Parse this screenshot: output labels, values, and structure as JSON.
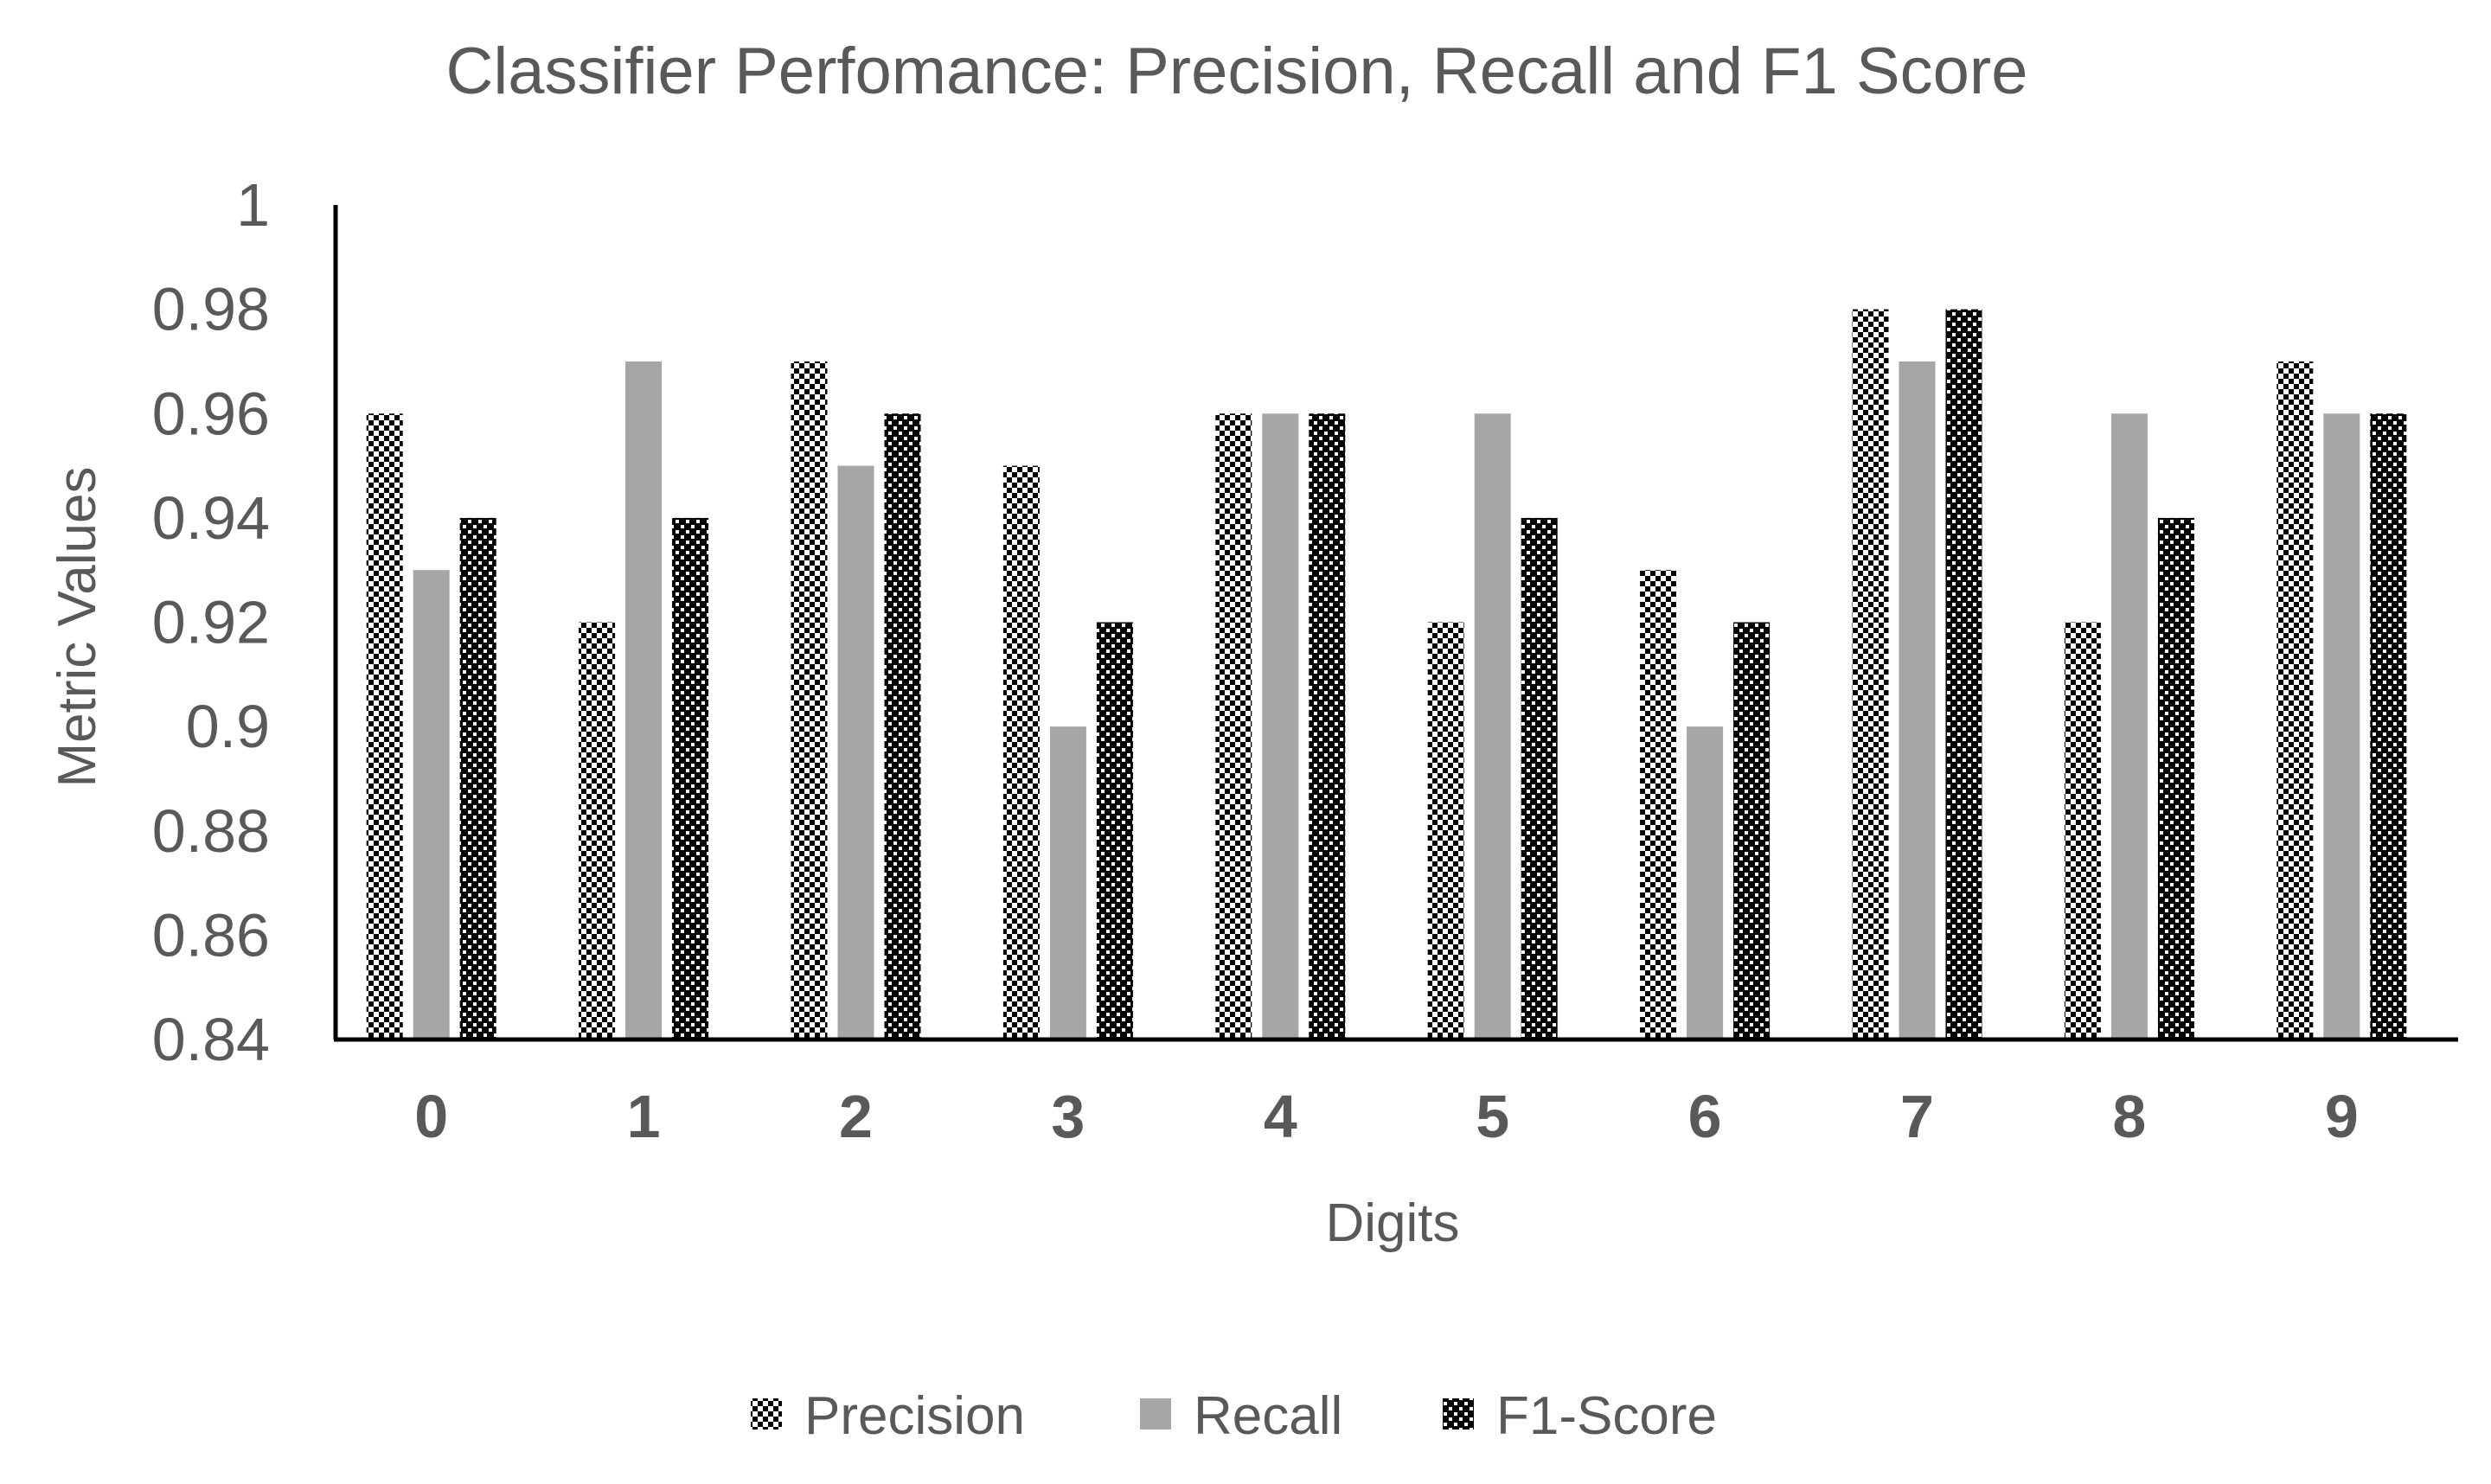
{
  "chart_data": {
    "type": "bar",
    "title": "Classifier Perfomance: Precision, Recall and F1 Score",
    "xlabel": "Digits",
    "ylabel": "Metric Values",
    "categories": [
      "0",
      "1",
      "2",
      "3",
      "4",
      "5",
      "6",
      "7",
      "8",
      "9"
    ],
    "ylim": [
      0.84,
      1
    ],
    "yticks": [
      "0.84",
      "0.86",
      "0.88",
      "0.9",
      "0.92",
      "0.94",
      "0.96",
      "0.98",
      "1"
    ],
    "grid": false,
    "legend_position": "bottom",
    "series": [
      {
        "name": "Precision",
        "pattern": "checker-light",
        "values": [
          0.96,
          0.92,
          0.97,
          0.95,
          0.96,
          0.92,
          0.93,
          0.98,
          0.92,
          0.97
        ]
      },
      {
        "name": "Recall",
        "pattern": "solid-gray",
        "values": [
          0.93,
          0.97,
          0.95,
          0.9,
          0.96,
          0.96,
          0.9,
          0.97,
          0.96,
          0.96
        ]
      },
      {
        "name": "F1-Score",
        "pattern": "checker-dark",
        "values": [
          0.94,
          0.94,
          0.96,
          0.92,
          0.96,
          0.94,
          0.92,
          0.98,
          0.94,
          0.96
        ]
      }
    ],
    "colors": {
      "text": "#595959",
      "axis": "#000000",
      "recall": "#a6a6a6",
      "checker_dark": "#000000",
      "checker_light": "#ffffff"
    }
  }
}
